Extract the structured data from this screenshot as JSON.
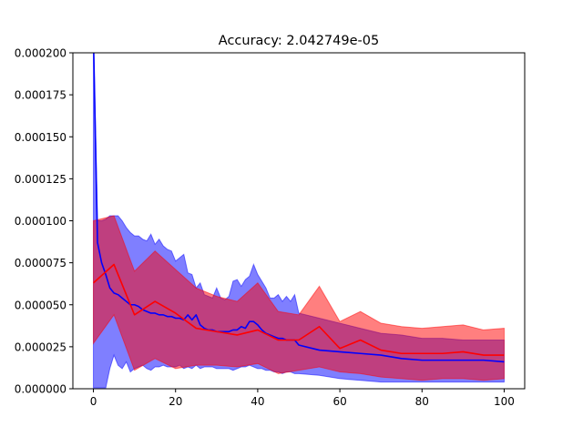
{
  "chart_data": {
    "type": "line",
    "title": "Accuracy: 2.042749e-05",
    "xlabel": "",
    "ylabel": "",
    "xlim": [
      -5,
      105
    ],
    "ylim": [
      0,
      0.0002
    ],
    "xticks": [
      0,
      20,
      40,
      60,
      80,
      100
    ],
    "xtick_labels": [
      "0",
      "20",
      "40",
      "60",
      "80",
      "100"
    ],
    "yticks": [
      0,
      2.5e-05,
      5e-05,
      7.5e-05,
      0.0001,
      0.000125,
      0.00015,
      0.000175,
      0.0002
    ],
    "ytick_labels": [
      "0.000000",
      "0.000025",
      "0.000050",
      "0.000075",
      "0.000100",
      "0.000125",
      "0.000150",
      "0.000175",
      "0.000200"
    ],
    "grid": false,
    "series": [
      {
        "color": "#0000ff",
        "band_color": "#0000ff",
        "x": [
          0,
          1,
          2,
          3,
          4,
          5,
          6,
          7,
          8,
          9,
          10,
          11,
          12,
          13,
          14,
          15,
          16,
          17,
          18,
          19,
          20,
          21,
          22,
          23,
          24,
          25,
          26,
          27,
          28,
          29,
          30,
          31,
          32,
          33,
          34,
          35,
          36,
          37,
          38,
          39,
          40,
          41,
          42,
          43,
          44,
          45,
          46,
          47,
          48,
          49,
          50,
          55,
          60,
          65,
          70,
          75,
          80,
          85,
          90,
          95,
          100
        ],
        "y": [
          0.00021,
          8.7e-05,
          7.5e-05,
          6.8e-05,
          6e-05,
          5.7e-05,
          5.6e-05,
          5.4e-05,
          5.2e-05,
          5e-05,
          5e-05,
          4.9e-05,
          4.7e-05,
          4.6e-05,
          4.5e-05,
          4.5e-05,
          4.4e-05,
          4.4e-05,
          4.3e-05,
          4.3e-05,
          4.2e-05,
          4.2e-05,
          4.1e-05,
          4.4e-05,
          4.1e-05,
          4.4e-05,
          3.8e-05,
          3.6e-05,
          3.5e-05,
          3.5e-05,
          3.4e-05,
          3.4e-05,
          3.4e-05,
          3.4e-05,
          3.5e-05,
          3.5e-05,
          3.7e-05,
          3.6e-05,
          4e-05,
          4e-05,
          3.8e-05,
          3.5e-05,
          3.3e-05,
          3.2e-05,
          3.1e-05,
          3e-05,
          3e-05,
          2.9e-05,
          2.9e-05,
          2.9e-05,
          2.6e-05,
          2.3e-05,
          2.2e-05,
          2.1e-05,
          2e-05,
          1.8e-05,
          1.7e-05,
          1.7e-05,
          1.7e-05,
          1.7e-05,
          1.6e-05
        ],
        "lower": [
          5e-07,
          5e-07,
          5e-07,
          5e-07,
          1.2e-05,
          2e-05,
          1.4e-05,
          1.2e-05,
          1.6e-05,
          1e-05,
          1.2e-05,
          1.3e-05,
          1.4e-05,
          1.2e-05,
          1.1e-05,
          1.3e-05,
          1.3e-05,
          1.4e-05,
          1.3e-05,
          1.3e-05,
          1.3e-05,
          1.4e-05,
          1.2e-05,
          1.3e-05,
          1.2e-05,
          1.4e-05,
          1.2e-05,
          1.3e-05,
          1.3e-05,
          1.3e-05,
          1.2e-05,
          1.2e-05,
          1.2e-05,
          1.2e-05,
          1.1e-05,
          1.2e-05,
          1.3e-05,
          1.3e-05,
          1.4e-05,
          1.3e-05,
          1.2e-05,
          1.2e-05,
          1.1e-05,
          1.1e-05,
          1e-05,
          1e-05,
          9e-06,
          1e-05,
          1e-05,
          9e-06,
          9e-06,
          8e-06,
          6e-06,
          5e-06,
          4e-06,
          4e-06,
          4e-06,
          4e-06,
          4e-06,
          4e-06,
          4e-06
        ],
        "upper": [
          0.00021,
          0.0001,
          0.0001,
          0.000101,
          0.000103,
          0.000103,
          0.000103,
          0.0001,
          9.6e-05,
          9.3e-05,
          9.1e-05,
          9.1e-05,
          8.9e-05,
          8.8e-05,
          9.2e-05,
          8.6e-05,
          8.9e-05,
          8.5e-05,
          8.3e-05,
          8.2e-05,
          7.6e-05,
          7.8e-05,
          8e-05,
          6.9e-05,
          6.8e-05,
          6e-05,
          6.3e-05,
          5.6e-05,
          5.5e-05,
          5.4e-05,
          6e-05,
          5.4e-05,
          5.3e-05,
          5.5e-05,
          6.4e-05,
          6.5e-05,
          6.1e-05,
          6.5e-05,
          6.7e-05,
          7.4e-05,
          6.8e-05,
          6.4e-05,
          6e-05,
          5.4e-05,
          5.4e-05,
          5.6e-05,
          5.2e-05,
          5.5e-05,
          5.2e-05,
          5.6e-05,
          4.5e-05,
          4.2e-05,
          3.9e-05,
          3.6e-05,
          3.3e-05,
          3.2e-05,
          3e-05,
          3e-05,
          2.9e-05,
          2.9e-05,
          2.9e-05
        ]
      },
      {
        "color": "#ff0000",
        "band_color": "#ff0000",
        "x": [
          0,
          5,
          10,
          15,
          20,
          25,
          30,
          35,
          40,
          45,
          50,
          55,
          60,
          65,
          70,
          75,
          80,
          85,
          90,
          95,
          100
        ],
        "y": [
          6.3e-05,
          7.4e-05,
          4.4e-05,
          5.2e-05,
          4.5e-05,
          3.6e-05,
          3.4e-05,
          3.2e-05,
          3.5e-05,
          2.9e-05,
          2.9e-05,
          3.7e-05,
          2.4e-05,
          2.9e-05,
          2.3e-05,
          2.1e-05,
          2.1e-05,
          2.1e-05,
          2.2e-05,
          2e-05,
          2e-05
        ],
        "lower": [
          2.7e-05,
          4.4e-05,
          1.1e-05,
          1.8e-05,
          1.2e-05,
          1.4e-05,
          1.4e-05,
          1.3e-05,
          1.5e-05,
          9e-06,
          1.1e-05,
          1.3e-05,
          1e-05,
          9e-06,
          7e-06,
          6e-06,
          5e-06,
          6e-06,
          6e-06,
          5e-06,
          6e-06
        ],
        "upper": [
          0.0001,
          0.000103,
          7e-05,
          8.2e-05,
          7.1e-05,
          6e-05,
          5.5e-05,
          5.2e-05,
          6.3e-05,
          4.6e-05,
          4.4e-05,
          6.1e-05,
          4e-05,
          4.6e-05,
          3.9e-05,
          3.7e-05,
          3.6e-05,
          3.7e-05,
          3.8e-05,
          3.5e-05,
          3.6e-05
        ]
      }
    ]
  }
}
